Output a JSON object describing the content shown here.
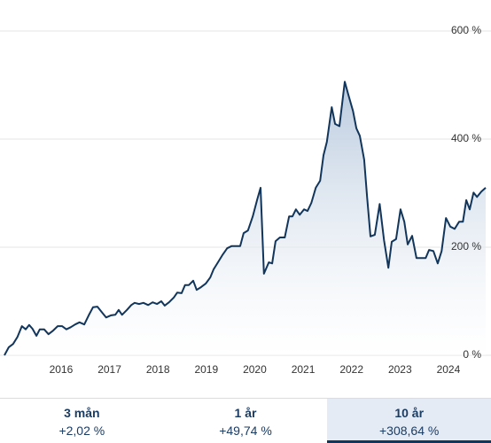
{
  "chart_data": {
    "type": "line",
    "color": "#12355b",
    "xlim": [
      2014.83,
      2024.77
    ],
    "xticks": [
      2016,
      2017,
      2018,
      2019,
      2020,
      2021,
      2022,
      2023,
      2024
    ],
    "ylim": [
      0,
      600
    ],
    "yticks": [
      {
        "value": 0,
        "label": "0 %"
      },
      {
        "value": 200,
        "label": "200 %"
      },
      {
        "value": 400,
        "label": "400 %"
      },
      {
        "value": 600,
        "label": "600 %"
      }
    ],
    "grid": true,
    "x": [
      2014.83,
      2014.92,
      2015.01,
      2015.1,
      2015.19,
      2015.27,
      2015.34,
      2015.41,
      2015.49,
      2015.56,
      2015.65,
      2015.74,
      2015.84,
      2015.93,
      2016.02,
      2016.11,
      2016.2,
      2016.29,
      2016.38,
      2016.48,
      2016.57,
      2016.66,
      2016.75,
      2016.84,
      2016.93,
      2017.03,
      2017.12,
      2017.19,
      2017.26,
      2017.36,
      2017.45,
      2017.52,
      2017.61,
      2017.7,
      2017.8,
      2017.89,
      2017.98,
      2018.07,
      2018.14,
      2018.23,
      2018.33,
      2018.4,
      2018.49,
      2018.56,
      2018.64,
      2018.73,
      2018.8,
      2018.89,
      2018.99,
      2019.08,
      2019.15,
      2019.24,
      2019.33,
      2019.43,
      2019.52,
      2019.61,
      2019.7,
      2019.77,
      2019.86,
      2019.96,
      2020.05,
      2020.12,
      2020.19,
      2020.29,
      2020.36,
      2020.43,
      2020.52,
      2020.62,
      2020.71,
      2020.78,
      2020.85,
      2020.93,
      2021.02,
      2021.09,
      2021.17,
      2021.26,
      2021.35,
      2021.42,
      2021.49,
      2021.59,
      2021.66,
      2021.75,
      2021.86,
      2021.93,
      2022.03,
      2022.1,
      2022.17,
      2022.26,
      2022.32,
      2022.39,
      2022.48,
      2022.58,
      2022.67,
      2022.76,
      2022.83,
      2022.92,
      2023.01,
      2023.09,
      2023.16,
      2023.25,
      2023.34,
      2023.44,
      2023.53,
      2023.6,
      2023.69,
      2023.78,
      2023.86,
      2023.95,
      2024.04,
      2024.13,
      2024.22,
      2024.3,
      2024.37,
      2024.44,
      2024.52,
      2024.59,
      2024.68,
      2024.77
    ],
    "values": [
      0,
      15,
      21,
      34,
      54,
      48,
      56,
      49,
      36,
      48,
      48,
      39,
      46,
      54,
      54,
      48,
      52,
      57,
      61,
      57,
      74,
      89,
      90,
      80,
      70,
      74,
      75,
      84,
      75,
      84,
      93,
      97,
      95,
      97,
      93,
      98,
      95,
      100,
      92,
      98,
      107,
      116,
      115,
      130,
      130,
      138,
      121,
      126,
      133,
      144,
      159,
      172,
      185,
      198,
      202,
      202,
      202,
      226,
      231,
      257,
      288,
      310,
      151,
      172,
      170,
      211,
      218,
      218,
      257,
      257,
      270,
      260,
      270,
      267,
      282,
      310,
      323,
      370,
      395,
      459,
      428,
      424,
      506,
      483,
      452,
      420,
      406,
      362,
      293,
      220,
      223,
      280,
      213,
      162,
      210,
      215,
      270,
      247,
      205,
      221,
      180,
      180,
      180,
      195,
      193,
      170,
      193,
      254,
      238,
      234,
      247,
      247,
      287,
      270,
      301,
      293,
      303,
      310
    ]
  },
  "tabs": {
    "selected": 2,
    "items": [
      {
        "label": "3 mån",
        "value": "+2,02 %"
      },
      {
        "label": "1 år",
        "value": "+49,74 %"
      },
      {
        "label": "10 år",
        "value": "+308,64 %"
      }
    ]
  }
}
